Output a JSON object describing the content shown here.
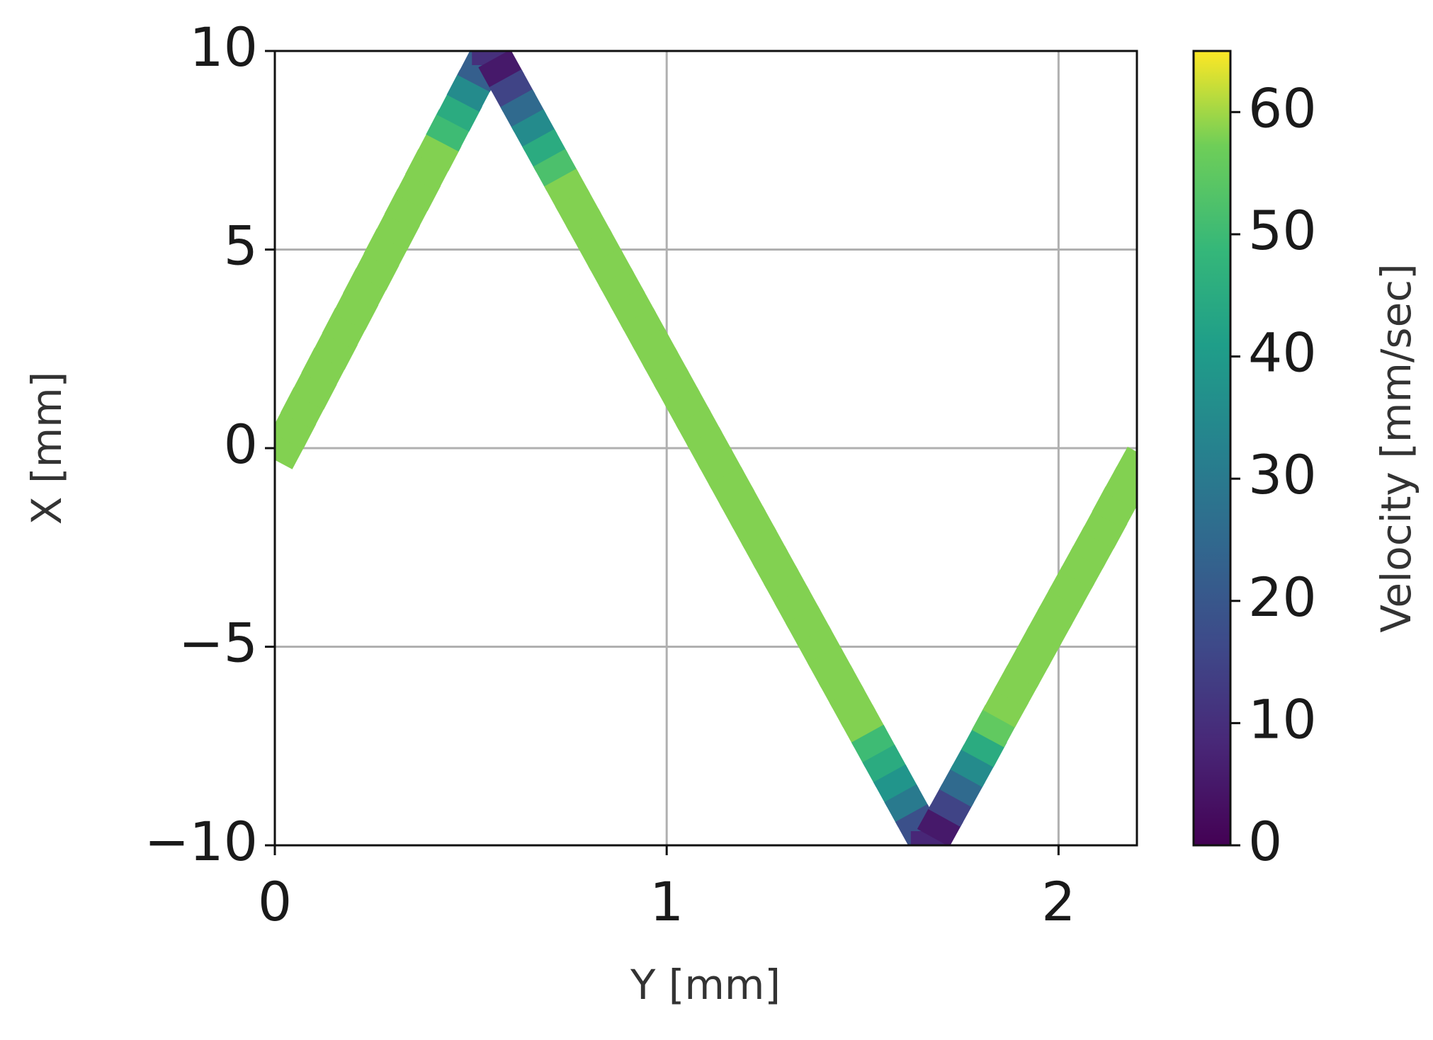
{
  "chart_data": {
    "type": "scatter",
    "x_label": "Y [mm]",
    "y_label": "X [mm]",
    "colorbar_label": "Velocity [mm/sec]",
    "colormap": "viridis",
    "clim": [
      0,
      65
    ],
    "cticks": [
      0,
      10,
      20,
      30,
      40,
      50,
      60
    ],
    "xlim": [
      0,
      2.2
    ],
    "xticks": [
      0,
      1,
      2
    ],
    "ylim": [
      -10,
      10
    ],
    "yticks": [
      {
        "value": -10,
        "label": "−10"
      },
      {
        "value": -5,
        "label": "−5"
      },
      0,
      5,
      10
    ],
    "grid": true,
    "x": [
      0.02,
      0.047,
      0.073,
      0.1,
      0.126,
      0.153,
      0.179,
      0.206,
      0.232,
      0.259,
      0.285,
      0.312,
      0.338,
      0.365,
      0.391,
      0.418,
      0.444,
      0.471,
      0.497,
      0.524,
      0.55,
      0.578,
      0.606,
      0.634,
      0.662,
      0.69,
      0.718,
      0.746,
      0.774,
      0.802,
      0.83,
      0.858,
      0.886,
      0.914,
      0.942,
      0.97,
      0.998,
      1.026,
      1.054,
      1.082,
      1.11,
      1.138,
      1.166,
      1.194,
      1.222,
      1.25,
      1.278,
      1.306,
      1.334,
      1.362,
      1.39,
      1.418,
      1.446,
      1.474,
      1.502,
      1.53,
      1.558,
      1.586,
      1.614,
      1.642,
      1.67,
      1.698,
      1.726,
      1.754,
      1.782,
      1.81,
      1.837,
      1.865,
      1.893,
      1.921,
      1.949,
      1.977,
      2.005,
      2.033,
      2.061,
      2.089,
      2.117,
      2.144,
      2.172,
      2.2
    ],
    "values": [
      0,
      0.5,
      1,
      1.5,
      2,
      2.5,
      3,
      3.5,
      4,
      4.5,
      5,
      5.5,
      6,
      6.5,
      7,
      7.5,
      8,
      8.5,
      9,
      9.5,
      10,
      9.5,
      9,
      8.5,
      8,
      7.5,
      7,
      6.5,
      6,
      5.5,
      5,
      4.5,
      4,
      3.5,
      3,
      2.5,
      2,
      1.5,
      1,
      0.5,
      0,
      -0.5,
      -1,
      -1.5,
      -2,
      -2.5,
      -3,
      -3.5,
      -4,
      -4.5,
      -5,
      -5.5,
      -6,
      -6.5,
      -7,
      -7.5,
      -8,
      -8.5,
      -9,
      -9.5,
      -10,
      -9.5,
      -9,
      -8.5,
      -8,
      -7.5,
      -7,
      -6.5,
      -6,
      -5.5,
      -5,
      -4.5,
      -4,
      -3.5,
      -3,
      -2.5,
      -2,
      -1.5,
      -1,
      -0.5
    ],
    "colors": [
      58,
      58,
      58,
      58,
      58,
      58,
      58,
      58,
      58,
      58,
      58,
      58,
      58,
      58,
      58,
      58,
      50,
      45,
      35,
      22,
      10,
      5,
      15,
      25,
      35,
      45,
      52,
      58,
      58,
      58,
      58,
      58,
      58,
      58,
      58,
      58,
      58,
      58,
      58,
      58,
      58,
      58,
      58,
      58,
      58,
      58,
      58,
      58,
      58,
      58,
      58,
      58,
      58,
      58,
      58,
      50,
      45,
      38,
      30,
      18,
      8,
      5,
      15,
      25,
      35,
      45,
      55,
      58,
      58,
      58,
      58,
      58,
      58,
      58,
      58,
      58,
      58,
      58,
      58,
      58
    ]
  }
}
